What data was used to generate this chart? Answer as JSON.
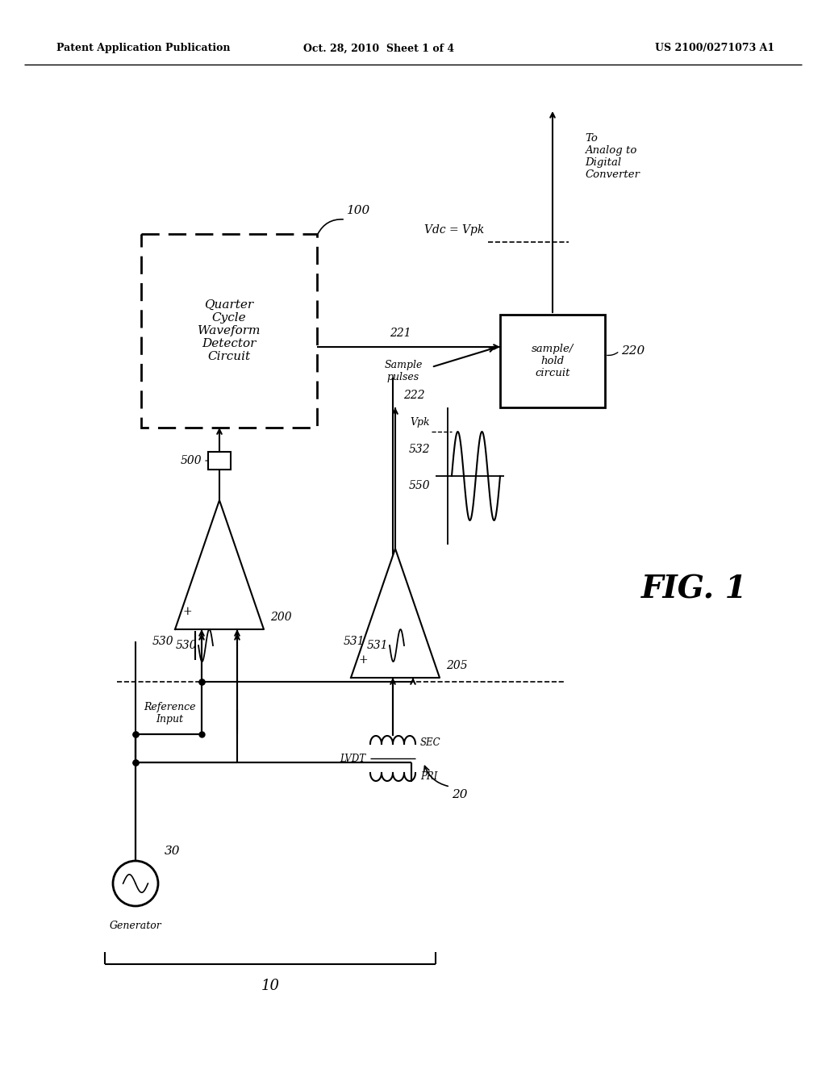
{
  "bg_color": "#ffffff",
  "header_left": "Patent Application Publication",
  "header_mid": "Oct. 28, 2010  Sheet 1 of 4",
  "header_right": "US 2100/0271073 A1",
  "fig_label": "FIG. 1",
  "qcwdc_label": "Quarter\nCycle\nWaveform\nDetector\nCircuit",
  "n100": "100",
  "n10": "10",
  "n20": "20",
  "n30": "30",
  "n200": "200",
  "n205": "205",
  "n220": "220",
  "n221": "221",
  "n222": "222",
  "n500": "500",
  "n530": "530",
  "n531": "531",
  "n532": "532",
  "n550": "550",
  "lbl_generator": "Generator",
  "lbl_ref_input": "Reference\nInput",
  "lbl_lvdt": "LVDT",
  "lbl_sec": "SEC",
  "lbl_pri": "PRI",
  "lbl_sh": "sample/\nhold\ncircuit",
  "lbl_sample_pulses": "Sample\npulses",
  "lbl_vdc": "Vdc = Vpk",
  "lbl_adc": "To\nAnalog to\nDigital\nConverter",
  "lbl_vpk": "Vpk"
}
